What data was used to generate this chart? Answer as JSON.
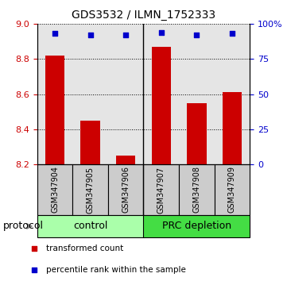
{
  "title": "GDS3532 / ILMN_1752333",
  "samples": [
    "GSM347904",
    "GSM347905",
    "GSM347906",
    "GSM347907",
    "GSM347908",
    "GSM347909"
  ],
  "transformed_counts": [
    8.82,
    8.45,
    8.25,
    8.87,
    8.55,
    8.61
  ],
  "percentile_ranks": [
    93,
    92,
    92,
    94,
    92,
    93
  ],
  "ylim_left": [
    8.2,
    9.0
  ],
  "ylim_right": [
    0,
    100
  ],
  "yticks_left": [
    8.2,
    8.4,
    8.6,
    8.8,
    9.0
  ],
  "yticks_right": [
    0,
    25,
    50,
    75,
    100
  ],
  "groups": [
    {
      "label": "control",
      "start": 0,
      "end": 3,
      "color": "#aaffaa"
    },
    {
      "label": "PRC depletion",
      "start": 3,
      "end": 6,
      "color": "#44dd44"
    }
  ],
  "bar_color": "#CC0000",
  "dot_color": "#0000CC",
  "bar_width": 0.55,
  "col_bg_color": "#cccccc",
  "xlabel_color_left": "#CC0000",
  "xlabel_color_right": "#0000CC",
  "grid_color": "#000000",
  "protocol_label": "protocol",
  "legend_items": [
    {
      "color": "#CC0000",
      "label": "transformed count"
    },
    {
      "color": "#0000CC",
      "label": "percentile rank within the sample"
    }
  ],
  "title_fontsize": 10,
  "tick_fontsize": 8,
  "sample_fontsize": 7,
  "group_fontsize": 9,
  "legend_fontsize": 7.5
}
